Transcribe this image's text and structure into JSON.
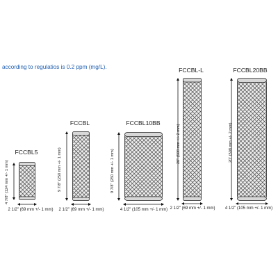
{
  "intro_text": "according to regulatios is 0.2 ppm (mg/L).",
  "colors": {
    "intro": "#1f5fb0",
    "mesh": "#3a3a3a",
    "arrow": "#111111"
  },
  "cartridges": [
    {
      "name": "FCCBL5",
      "height_label": "4 7/8\" (124 mm +/- 1 mm)",
      "width_label": "2 1/2\" (69 mm +/- 1 mm)"
    },
    {
      "name": "FCCBL",
      "height_label": "9 7/8\" (250 mm +/- 1 mm)",
      "width_label": "2 1/2\" (69 mm +/- 1 mm)"
    },
    {
      "name": "FCCBL10BB",
      "height_label": "9 7/8\" (250 mm +/- 1 mm)",
      "width_label": "4 1/2\" (105 mm +/- 1 mm)"
    },
    {
      "name": "FCCBL-L",
      "height_label": "20\" (508 mm +/- 2 mm)",
      "width_label": "2 1/2\" (69 mm +/- 1 mm)"
    },
    {
      "name": "FCCBL20BB",
      "height_label": "20\" (508 mm +/- 2 mm)",
      "width_label": "4 1/2\" (105 mm +/- 1 mm)"
    }
  ]
}
